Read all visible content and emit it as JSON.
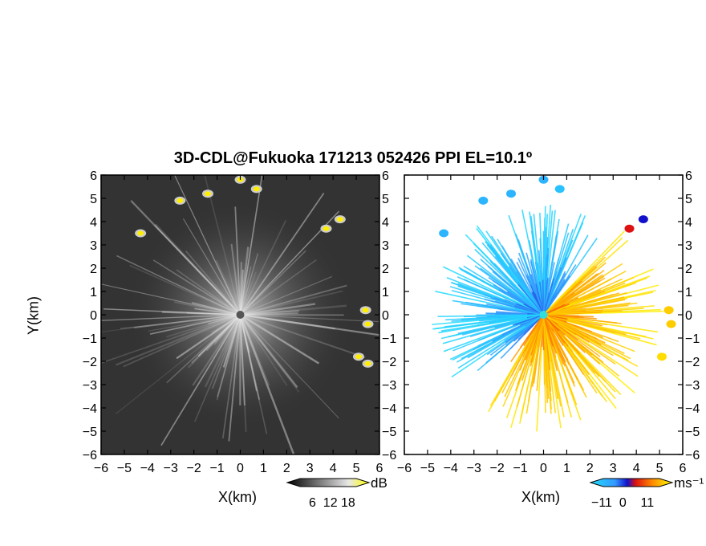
{
  "chart_data": [
    {
      "type": "heatmap",
      "panel": "left",
      "title": "3D-CDL@Fukuoka 171213 052426 PPI EL=10.1º",
      "xlabel": "X(km)",
      "ylabel": "Y(km)",
      "xlim": [
        -6,
        6
      ],
      "ylim": [
        -6,
        6
      ],
      "xticks": [
        "−6",
        "−5",
        "−4",
        "−3",
        "−2",
        "−1",
        "0",
        "1",
        "2",
        "3",
        "4",
        "5",
        "6"
      ],
      "yticks": [
        "6",
        "5",
        "4",
        "3",
        "2",
        "1",
        "0",
        "−1",
        "−2",
        "−3",
        "−4",
        "−5",
        "−6"
      ],
      "colorbar": {
        "label": "dB",
        "ticks": [
          "6",
          "12",
          "18"
        ],
        "range": [
          0,
          20
        ],
        "colormap": "grayscale-to-yellow"
      },
      "bright_echoes": [
        {
          "x": -4.3,
          "y": 3.5
        },
        {
          "x": -2.6,
          "y": 4.9
        },
        {
          "x": -1.4,
          "y": 5.2
        },
        {
          "x": 0.0,
          "y": 5.8
        },
        {
          "x": 0.7,
          "y": 5.4
        },
        {
          "x": 3.7,
          "y": 3.7
        },
        {
          "x": 4.3,
          "y": 4.1
        },
        {
          "x": 5.4,
          "y": 0.2
        },
        {
          "x": 5.5,
          "y": -0.4
        },
        {
          "x": 5.1,
          "y": -1.8
        },
        {
          "x": 5.5,
          "y": -2.1
        }
      ]
    },
    {
      "type": "heatmap",
      "panel": "right",
      "xlabel": "X(km)",
      "xlim": [
        -6,
        6
      ],
      "ylim": [
        -6,
        6
      ],
      "xticks": [
        "−6",
        "−5",
        "−4",
        "−3",
        "−2",
        "−1",
        "0",
        "1",
        "2",
        "3",
        "4",
        "5",
        "6"
      ],
      "yticks": [
        "6",
        "5",
        "4",
        "3",
        "2",
        "1",
        "0",
        "−1",
        "−2",
        "−3",
        "−4",
        "−5",
        "−6"
      ],
      "colorbar": {
        "label": "ms⁻¹",
        "ticks": [
          "−11",
          "0",
          "11"
        ],
        "range": [
          -11,
          11
        ],
        "colormap": "cyan-blue-red-yellow"
      },
      "pattern": "radial velocity: negative (cyan/blue) toward upper-left, positive (red/orange/yellow) toward lower-right",
      "echoes": [
        {
          "x": -4.3,
          "y": 3.5,
          "v": -8
        },
        {
          "x": -2.6,
          "y": 4.9,
          "v": -8
        },
        {
          "x": -1.4,
          "y": 5.2,
          "v": -8
        },
        {
          "x": 0.0,
          "y": 5.8,
          "v": -8
        },
        {
          "x": 0.7,
          "y": 5.4,
          "v": -9
        },
        {
          "x": 3.7,
          "y": 3.7,
          "v": 1
        },
        {
          "x": 4.3,
          "y": 4.1,
          "v": -1
        },
        {
          "x": 5.4,
          "y": 0.2,
          "v": 9
        },
        {
          "x": 5.5,
          "y": -0.4,
          "v": 9
        },
        {
          "x": 5.1,
          "y": -1.8,
          "v": 10
        }
      ]
    }
  ],
  "text": {
    "title": "3D-CDL@Fukuoka 171213 052426 PPI EL=10.1º",
    "left_xlabel": "X(km)",
    "right_xlabel": "X(km)",
    "ylabel": "Y(km)",
    "left_cb_unit": "dB",
    "left_cb_ticks": "6  12 18",
    "right_cb_unit": "ms⁻¹",
    "right_cb_ticks": "−11  0    11"
  }
}
